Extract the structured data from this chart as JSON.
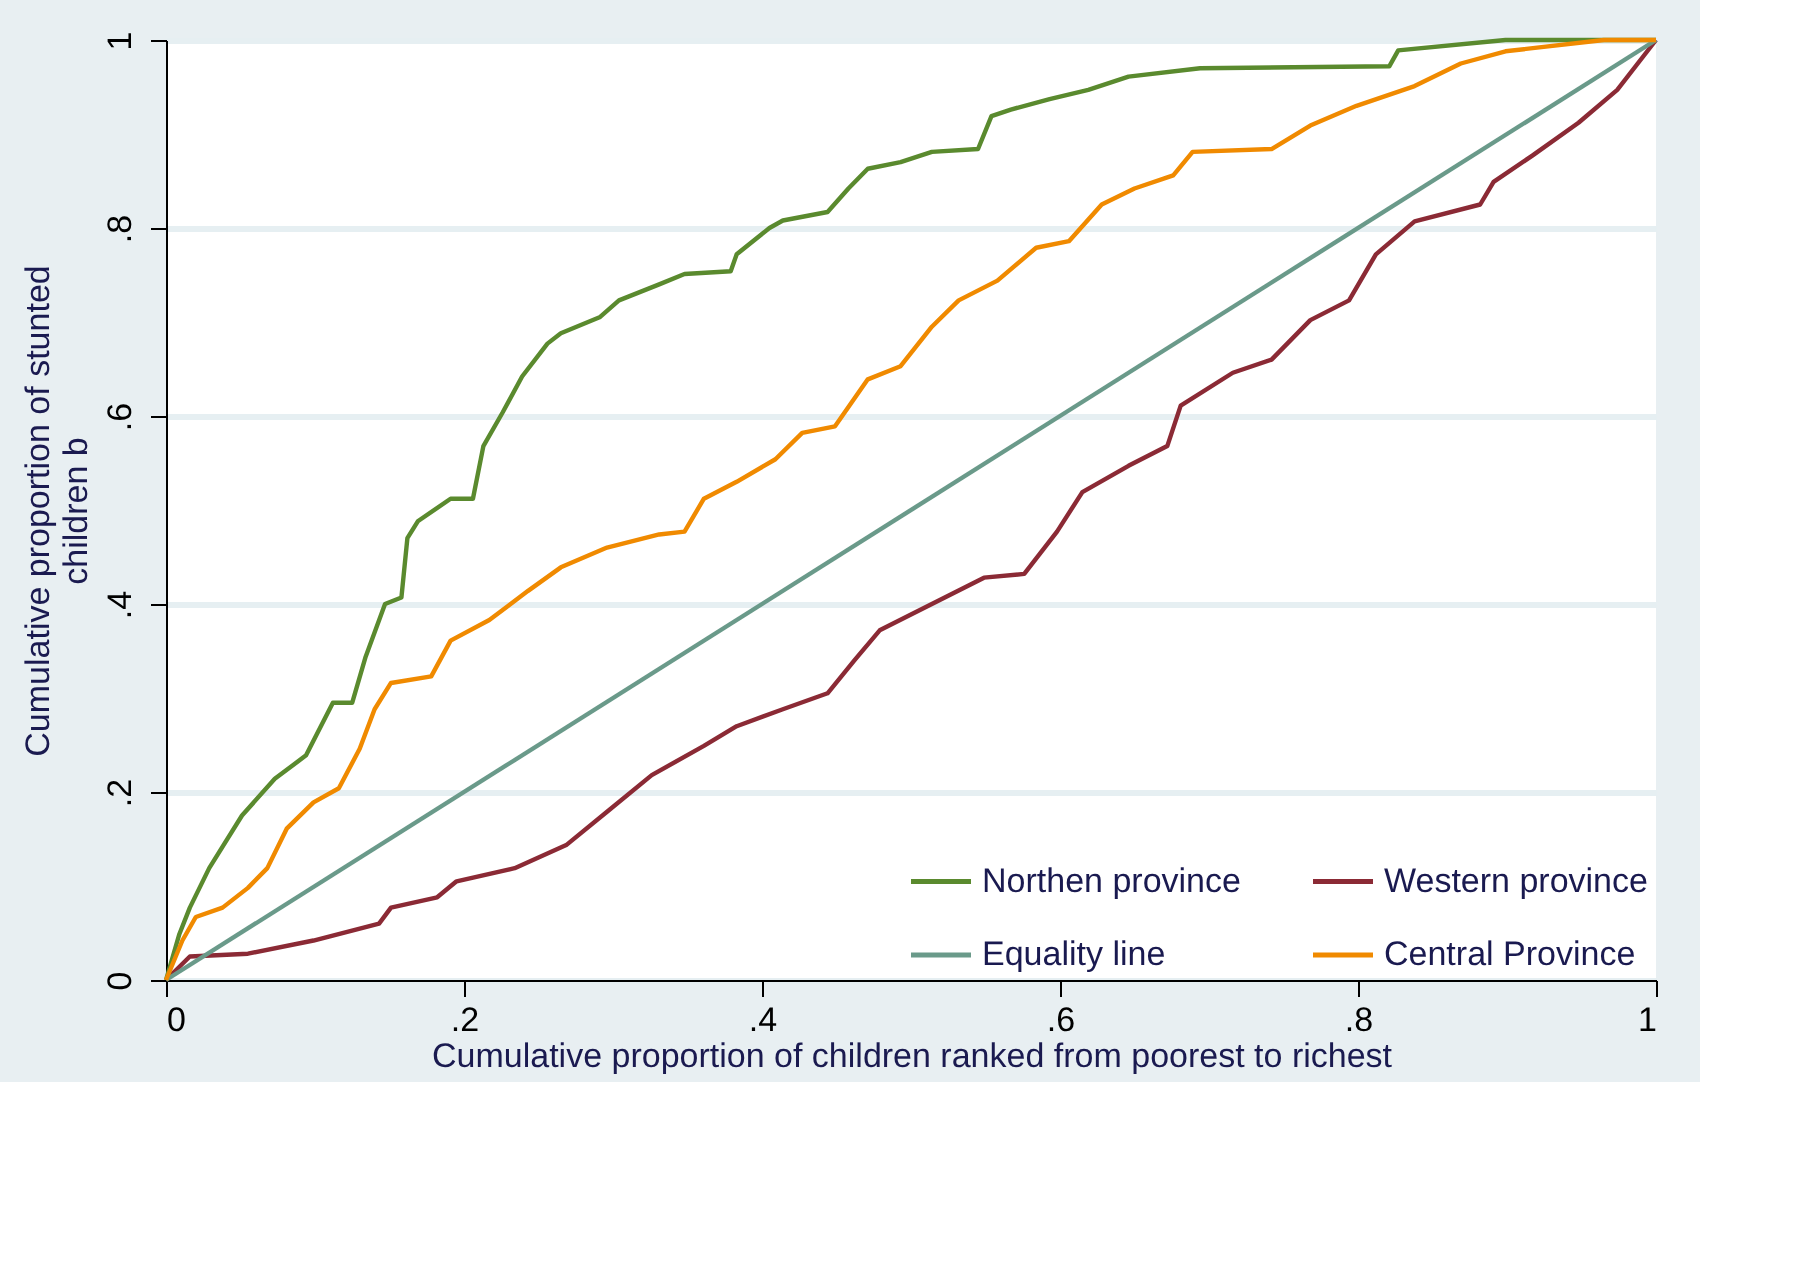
{
  "chart_data": {
    "type": "line",
    "xlabel": "Cumulative proportion of children ranked from poorest to richest",
    "ylabel": "Cumulative proportion of stunted\nchildren b",
    "xlim": [
      0,
      1
    ],
    "ylim": [
      0,
      1
    ],
    "xticks": [
      0,
      {
        "value": 0.2,
        "label": ".2"
      },
      {
        "value": 0.4,
        "label": ".4"
      },
      {
        "value": 0.6,
        "label": ".6"
      },
      {
        "value": 0.8,
        "label": ".8"
      },
      1
    ],
    "yticks": [
      0,
      {
        "value": 0.2,
        "label": ".2"
      },
      {
        "value": 0.4,
        "label": ".4"
      },
      {
        "value": 0.6,
        "label": ".6"
      },
      {
        "value": 0.8,
        "label": ".8"
      },
      1
    ],
    "grid": "y",
    "legend": "bottom right",
    "marker": "none",
    "line_style": "solid",
    "series": [
      {
        "name": "Northen province",
        "color": "#5a8a2e",
        "x": [
          0,
          0.009,
          0.016,
          0.029,
          0.051,
          0.073,
          0.094,
          0.112,
          0.125,
          0.134,
          0.147,
          0.158,
          0.162,
          0.169,
          0.191,
          0.206,
          0.213,
          0.226,
          0.239,
          0.256,
          0.265,
          0.291,
          0.304,
          0.331,
          0.348,
          0.379,
          0.383,
          0.405,
          0.414,
          0.444,
          0.458,
          0.471,
          0.493,
          0.514,
          0.545,
          0.554,
          0.567,
          0.593,
          0.619,
          0.646,
          0.694,
          0.821,
          0.827,
          0.899,
          1
        ],
        "values": [
          0,
          0.049,
          0.077,
          0.119,
          0.175,
          0.214,
          0.239,
          0.295,
          0.295,
          0.344,
          0.4,
          0.407,
          0.47,
          0.488,
          0.512,
          0.512,
          0.568,
          0.604,
          0.642,
          0.677,
          0.688,
          0.705,
          0.723,
          0.74,
          0.751,
          0.754,
          0.772,
          0.8,
          0.808,
          0.817,
          0.842,
          0.863,
          0.87,
          0.881,
          0.884,
          0.919,
          0.926,
          0.937,
          0.947,
          0.961,
          0.97,
          0.972,
          0.989,
          1,
          1
        ]
      },
      {
        "name": "Western province",
        "color": "#8b2a35",
        "x": [
          0,
          0.016,
          0.055,
          0.099,
          0.143,
          0.151,
          0.182,
          0.195,
          0.234,
          0.269,
          0.296,
          0.326,
          0.361,
          0.383,
          0.414,
          0.444,
          0.462,
          0.479,
          0.514,
          0.549,
          0.576,
          0.598,
          0.615,
          0.646,
          0.672,
          0.681,
          0.716,
          0.742,
          0.768,
          0.794,
          0.812,
          0.838,
          0.882,
          0.891,
          0.917,
          0.948,
          0.974,
          1
        ],
        "values": [
          0,
          0.025,
          0.028,
          0.042,
          0.06,
          0.077,
          0.088,
          0.105,
          0.119,
          0.144,
          0.179,
          0.218,
          0.249,
          0.27,
          0.288,
          0.305,
          0.34,
          0.372,
          0.4,
          0.428,
          0.432,
          0.477,
          0.519,
          0.547,
          0.568,
          0.611,
          0.646,
          0.66,
          0.702,
          0.723,
          0.772,
          0.807,
          0.825,
          0.849,
          0.877,
          0.912,
          0.947,
          1
        ]
      },
      {
        "name": "Equality line",
        "color": "#6a9a8a",
        "x": [
          0,
          1
        ],
        "values": [
          0,
          1
        ]
      },
      {
        "name": "Central Province",
        "color": "#f08a00",
        "x": [
          0,
          0.011,
          0.02,
          0.038,
          0.055,
          0.068,
          0.081,
          0.099,
          0.116,
          0.13,
          0.14,
          0.151,
          0.178,
          0.191,
          0.217,
          0.243,
          0.265,
          0.296,
          0.331,
          0.348,
          0.361,
          0.383,
          0.409,
          0.427,
          0.449,
          0.471,
          0.493,
          0.514,
          0.532,
          0.558,
          0.584,
          0.606,
          0.628,
          0.65,
          0.676,
          0.689,
          0.742,
          0.768,
          0.799,
          0.838,
          0.869,
          0.899,
          0.965,
          1
        ],
        "values": [
          0,
          0.042,
          0.067,
          0.077,
          0.098,
          0.119,
          0.161,
          0.189,
          0.204,
          0.246,
          0.288,
          0.316,
          0.323,
          0.361,
          0.383,
          0.414,
          0.439,
          0.46,
          0.474,
          0.477,
          0.512,
          0.53,
          0.554,
          0.582,
          0.589,
          0.639,
          0.653,
          0.695,
          0.723,
          0.744,
          0.779,
          0.786,
          0.825,
          0.842,
          0.856,
          0.881,
          0.884,
          0.909,
          0.93,
          0.951,
          0.975,
          0.988,
          1,
          1
        ]
      }
    ]
  }
}
